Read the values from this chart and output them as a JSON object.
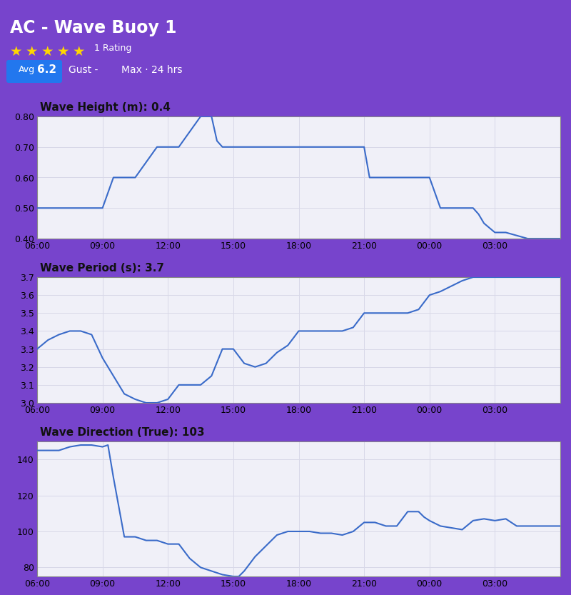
{
  "outer_bg": "#7744cc",
  "chart_area_bg": "#ffffff",
  "line_color": "#3a6bc9",
  "grid_color": "#d8d8e8",
  "chart_bg": "#f0f0f8",
  "title_fontsize": 11,
  "tick_fontsize": 9,
  "spine_color": "#555555",
  "chart1": {
    "title": "Wave Height (m): 0.4",
    "ylim": [
      0.4,
      0.8
    ],
    "yticks": [
      0.4,
      0.5,
      0.6,
      0.7,
      0.8
    ],
    "ytick_labels": [
      "0.40",
      "0.50",
      "0.60",
      "0.70",
      "0.80"
    ],
    "x": [
      6.0,
      6.5,
      7.0,
      7.5,
      8.0,
      8.25,
      8.5,
      9.0,
      9.5,
      10.0,
      10.5,
      11.0,
      11.5,
      12.0,
      12.5,
      13.0,
      13.5,
      14.0,
      14.25,
      14.5,
      15.0,
      15.5,
      16.0,
      16.5,
      17.0,
      17.5,
      18.0,
      18.5,
      19.0,
      19.5,
      20.0,
      20.5,
      21.0,
      21.25,
      21.5,
      22.0,
      22.5,
      23.0,
      23.5,
      24.0,
      24.5,
      25.0,
      25.5,
      26.0,
      26.25,
      26.5,
      27.0,
      27.5,
      28.0,
      28.5,
      29.0,
      29.5,
      30.0
    ],
    "y": [
      0.5,
      0.5,
      0.5,
      0.5,
      0.5,
      0.5,
      0.5,
      0.5,
      0.6,
      0.6,
      0.6,
      0.65,
      0.7,
      0.7,
      0.7,
      0.75,
      0.8,
      0.8,
      0.72,
      0.7,
      0.7,
      0.7,
      0.7,
      0.7,
      0.7,
      0.7,
      0.7,
      0.7,
      0.7,
      0.7,
      0.7,
      0.7,
      0.7,
      0.6,
      0.6,
      0.6,
      0.6,
      0.6,
      0.6,
      0.6,
      0.5,
      0.5,
      0.5,
      0.5,
      0.48,
      0.45,
      0.42,
      0.42,
      0.41,
      0.4,
      0.4,
      0.4,
      0.4
    ]
  },
  "chart2": {
    "title": "Wave Period (s): 3.7",
    "ylim": [
      3.0,
      3.7
    ],
    "yticks": [
      3.0,
      3.1,
      3.2,
      3.3,
      3.4,
      3.5,
      3.6,
      3.7
    ],
    "ytick_labels": [
      "3.0",
      "3.1",
      "3.2",
      "3.3",
      "3.4",
      "3.5",
      "3.6",
      "3.7"
    ],
    "x": [
      6.0,
      6.5,
      7.0,
      7.5,
      8.0,
      8.5,
      9.0,
      9.5,
      10.0,
      10.5,
      11.0,
      11.5,
      12.0,
      12.5,
      13.0,
      13.5,
      14.0,
      14.5,
      15.0,
      15.5,
      16.0,
      16.5,
      17.0,
      17.5,
      18.0,
      18.5,
      19.0,
      19.5,
      20.0,
      20.5,
      21.0,
      21.5,
      22.0,
      22.5,
      23.0,
      23.5,
      24.0,
      24.5,
      25.0,
      25.5,
      26.0,
      26.5,
      27.0,
      27.5,
      28.0,
      28.5,
      29.0,
      29.5,
      30.0
    ],
    "y": [
      3.3,
      3.35,
      3.38,
      3.4,
      3.4,
      3.38,
      3.25,
      3.15,
      3.05,
      3.02,
      3.0,
      3.0,
      3.02,
      3.1,
      3.1,
      3.1,
      3.15,
      3.3,
      3.3,
      3.22,
      3.2,
      3.22,
      3.28,
      3.32,
      3.4,
      3.4,
      3.4,
      3.4,
      3.4,
      3.42,
      3.5,
      3.5,
      3.5,
      3.5,
      3.5,
      3.52,
      3.6,
      3.62,
      3.65,
      3.68,
      3.7,
      3.7,
      3.7,
      3.7,
      3.7,
      3.7,
      3.7,
      3.7,
      3.7
    ]
  },
  "chart3": {
    "title": "Wave Direction (True): 103",
    "ylim": [
      75,
      150
    ],
    "yticks": [
      80,
      100,
      120,
      140
    ],
    "ytick_labels": [
      "80",
      "100",
      "120",
      "140"
    ],
    "x": [
      6.0,
      6.5,
      7.0,
      7.5,
      8.0,
      8.5,
      9.0,
      9.25,
      9.5,
      10.0,
      10.5,
      11.0,
      11.5,
      12.0,
      12.5,
      13.0,
      13.5,
      14.0,
      14.5,
      15.0,
      15.25,
      15.5,
      16.0,
      16.5,
      17.0,
      17.5,
      18.0,
      18.5,
      19.0,
      19.5,
      20.0,
      20.5,
      21.0,
      21.5,
      22.0,
      22.5,
      23.0,
      23.5,
      23.75,
      24.0,
      24.5,
      25.0,
      25.5,
      26.0,
      26.5,
      27.0,
      27.5,
      28.0,
      28.5,
      29.0,
      29.5,
      30.0
    ],
    "y": [
      145,
      145,
      145,
      147,
      148,
      148,
      147,
      148,
      130,
      97,
      97,
      95,
      95,
      93,
      93,
      85,
      80,
      78,
      76,
      75,
      75,
      78,
      86,
      92,
      98,
      100,
      100,
      100,
      99,
      99,
      98,
      100,
      105,
      105,
      103,
      103,
      111,
      111,
      108,
      106,
      103,
      102,
      101,
      106,
      107,
      106,
      107,
      103,
      103,
      103,
      103,
      103
    ]
  },
  "xtick_positions": [
    6,
    9,
    12,
    15,
    18,
    21,
    24,
    27,
    30
  ],
  "xtick_labels": [
    "06:00",
    "09:00",
    "12:00",
    "15:00",
    "18:00",
    "21:00",
    "00:00",
    "03:00",
    ""
  ],
  "header_texts": {
    "title": "AC - Wave Buoy 1",
    "rating": "1 Rating",
    "avg_label": "Avg",
    "avg_value": "6.2",
    "gust": "Gust -",
    "max": "Max · 24 hrs"
  }
}
